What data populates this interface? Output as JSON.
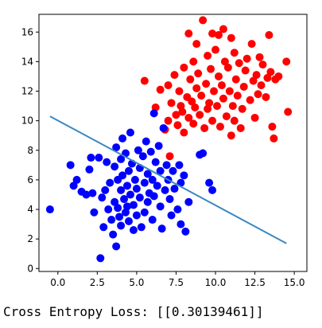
{
  "chart_data": {
    "type": "scatter",
    "title": "",
    "xlabel": "",
    "ylabel": "",
    "xlim": [
      -1.2,
      15.8
    ],
    "ylim": [
      -0.2,
      17.2
    ],
    "x_ticks": [
      0.0,
      2.5,
      5.0,
      7.5,
      10.0,
      12.5,
      15.0
    ],
    "x_tick_labels": [
      "0.0",
      "2.5",
      "5.0",
      "7.5",
      "10.0",
      "12.5",
      "15.0"
    ],
    "y_ticks": [
      0,
      2,
      4,
      6,
      8,
      10,
      12,
      14,
      16
    ],
    "y_tick_labels": [
      "0",
      "2",
      "4",
      "6",
      "8",
      "10",
      "12",
      "14",
      "16"
    ],
    "grid": false,
    "series": [
      {
        "color": "#0000ff",
        "marker": "circle",
        "points": [
          [
            -0.5,
            4.0
          ],
          [
            0.8,
            7.0
          ],
          [
            1.0,
            5.6
          ],
          [
            1.2,
            6.0
          ],
          [
            1.5,
            5.2
          ],
          [
            1.8,
            5.0
          ],
          [
            2.0,
            6.7
          ],
          [
            2.1,
            7.5
          ],
          [
            2.2,
            5.1
          ],
          [
            2.3,
            3.8
          ],
          [
            2.6,
            7.5
          ],
          [
            2.7,
            0.7
          ],
          [
            2.8,
            4.8
          ],
          [
            2.9,
            2.8
          ],
          [
            3.0,
            5.3
          ],
          [
            3.1,
            7.2
          ],
          [
            3.2,
            4.0
          ],
          [
            3.3,
            5.8
          ],
          [
            3.4,
            3.3
          ],
          [
            3.5,
            2.3
          ],
          [
            3.6,
            6.9
          ],
          [
            3.6,
            4.5
          ],
          [
            3.7,
            8.2
          ],
          [
            3.7,
            1.5
          ],
          [
            3.8,
            6.0
          ],
          [
            3.8,
            4.1
          ],
          [
            3.9,
            3.5
          ],
          [
            4.0,
            7.4
          ],
          [
            4.0,
            5.3
          ],
          [
            4.0,
            2.9
          ],
          [
            4.1,
            8.8
          ],
          [
            4.1,
            6.3
          ],
          [
            4.2,
            4.7
          ],
          [
            4.3,
            7.8
          ],
          [
            4.3,
            3.8
          ],
          [
            4.4,
            5.6
          ],
          [
            4.4,
            4.2
          ],
          [
            4.5,
            6.6
          ],
          [
            4.5,
            3.2
          ],
          [
            4.6,
            9.2
          ],
          [
            4.6,
            5.0
          ],
          [
            4.7,
            7.1
          ],
          [
            4.8,
            4.3
          ],
          [
            4.8,
            2.6
          ],
          [
            4.9,
            6.0
          ],
          [
            5.0,
            5.4
          ],
          [
            5.0,
            3.6
          ],
          [
            5.1,
            8.0
          ],
          [
            5.2,
            6.8
          ],
          [
            5.2,
            4.8
          ],
          [
            5.3,
            2.8
          ],
          [
            5.4,
            7.6
          ],
          [
            5.5,
            5.8
          ],
          [
            5.5,
            3.8
          ],
          [
            5.6,
            8.6
          ],
          [
            5.7,
            6.4
          ],
          [
            5.7,
            4.5
          ],
          [
            5.8,
            5.1
          ],
          [
            5.9,
            7.9
          ],
          [
            6.0,
            6.0
          ],
          [
            6.0,
            3.3
          ],
          [
            6.1,
            10.5
          ],
          [
            6.1,
            4.9
          ],
          [
            6.2,
            7.2
          ],
          [
            6.3,
            5.6
          ],
          [
            6.4,
            8.3
          ],
          [
            6.5,
            6.6
          ],
          [
            6.5,
            4.2
          ],
          [
            6.6,
            2.7
          ],
          [
            6.7,
            9.5
          ],
          [
            6.8,
            5.3
          ],
          [
            6.9,
            7.0
          ],
          [
            7.0,
            6.0
          ],
          [
            7.1,
            4.7
          ],
          [
            7.2,
            3.6
          ],
          [
            7.3,
            6.6
          ],
          [
            7.4,
            5.4
          ],
          [
            7.6,
            4.0
          ],
          [
            7.7,
            7.0
          ],
          [
            7.8,
            5.8
          ],
          [
            7.8,
            3.0
          ],
          [
            8.0,
            6.3
          ],
          [
            8.1,
            2.5
          ],
          [
            8.3,
            4.5
          ],
          [
            9.0,
            7.7
          ],
          [
            9.2,
            7.8
          ],
          [
            9.6,
            5.8
          ],
          [
            9.8,
            5.3
          ]
        ]
      },
      {
        "color": "#ff0000",
        "marker": "circle",
        "points": [
          [
            5.5,
            12.7
          ],
          [
            6.2,
            10.9
          ],
          [
            6.5,
            12.1
          ],
          [
            6.8,
            9.4
          ],
          [
            7.0,
            12.4
          ],
          [
            7.0,
            10.0
          ],
          [
            7.1,
            7.6
          ],
          [
            7.2,
            11.2
          ],
          [
            7.4,
            13.1
          ],
          [
            7.5,
            10.4
          ],
          [
            7.6,
            9.7
          ],
          [
            7.7,
            12.0
          ],
          [
            7.8,
            11.0
          ],
          [
            7.9,
            10.6
          ],
          [
            8.0,
            13.6
          ],
          [
            8.0,
            9.2
          ],
          [
            8.2,
            11.6
          ],
          [
            8.3,
            10.2
          ],
          [
            8.3,
            15.9
          ],
          [
            8.4,
            12.8
          ],
          [
            8.5,
            11.3
          ],
          [
            8.6,
            14.0
          ],
          [
            8.6,
            9.8
          ],
          [
            8.7,
            10.9
          ],
          [
            8.8,
            12.2
          ],
          [
            8.8,
            15.2
          ],
          [
            8.9,
            13.2
          ],
          [
            9.0,
            10.4
          ],
          [
            9.1,
            11.7
          ],
          [
            9.2,
            16.8
          ],
          [
            9.3,
            9.5
          ],
          [
            9.4,
            12.5
          ],
          [
            9.5,
            14.4
          ],
          [
            9.5,
            10.8
          ],
          [
            9.6,
            11.2
          ],
          [
            9.7,
            13.5
          ],
          [
            9.8,
            15.9
          ],
          [
            9.8,
            10.0
          ],
          [
            9.9,
            12.0
          ],
          [
            10.0,
            14.8
          ],
          [
            10.1,
            11.0
          ],
          [
            10.2,
            15.8
          ],
          [
            10.2,
            13.0
          ],
          [
            10.3,
            9.6
          ],
          [
            10.4,
            12.4
          ],
          [
            10.5,
            11.5
          ],
          [
            10.5,
            16.2
          ],
          [
            10.6,
            14.0
          ],
          [
            10.7,
            10.3
          ],
          [
            10.8,
            13.6
          ],
          [
            10.9,
            12.0
          ],
          [
            11.0,
            15.6
          ],
          [
            11.0,
            9.0
          ],
          [
            11.1,
            11.0
          ],
          [
            11.2,
            14.6
          ],
          [
            11.2,
            10.0
          ],
          [
            11.3,
            12.8
          ],
          [
            11.4,
            11.7
          ],
          [
            11.5,
            13.9
          ],
          [
            11.6,
            9.5
          ],
          [
            11.7,
            10.8
          ],
          [
            11.8,
            12.3
          ],
          [
            11.9,
            13.4
          ],
          [
            12.0,
            14.2
          ],
          [
            12.2,
            11.4
          ],
          [
            12.3,
            15.2
          ],
          [
            12.4,
            12.7
          ],
          [
            12.5,
            10.2
          ],
          [
            12.6,
            13.1
          ],
          [
            12.7,
            11.8
          ],
          [
            12.8,
            14.3
          ],
          [
            12.9,
            12.4
          ],
          [
            13.0,
            13.8
          ],
          [
            13.2,
            11.6
          ],
          [
            13.3,
            12.9
          ],
          [
            13.4,
            15.8
          ],
          [
            13.5,
            13.3
          ],
          [
            13.6,
            9.6
          ],
          [
            13.7,
            8.8
          ],
          [
            13.8,
            12.8
          ],
          [
            14.0,
            13.0
          ],
          [
            14.5,
            14.0
          ],
          [
            14.6,
            10.6
          ]
        ]
      }
    ],
    "line": {
      "color": "#3a87c2",
      "x": [
        -0.5,
        14.5
      ],
      "y": [
        10.3,
        1.7
      ]
    }
  },
  "output_text": "Cross Entropy Loss: [[0.30139461]]"
}
